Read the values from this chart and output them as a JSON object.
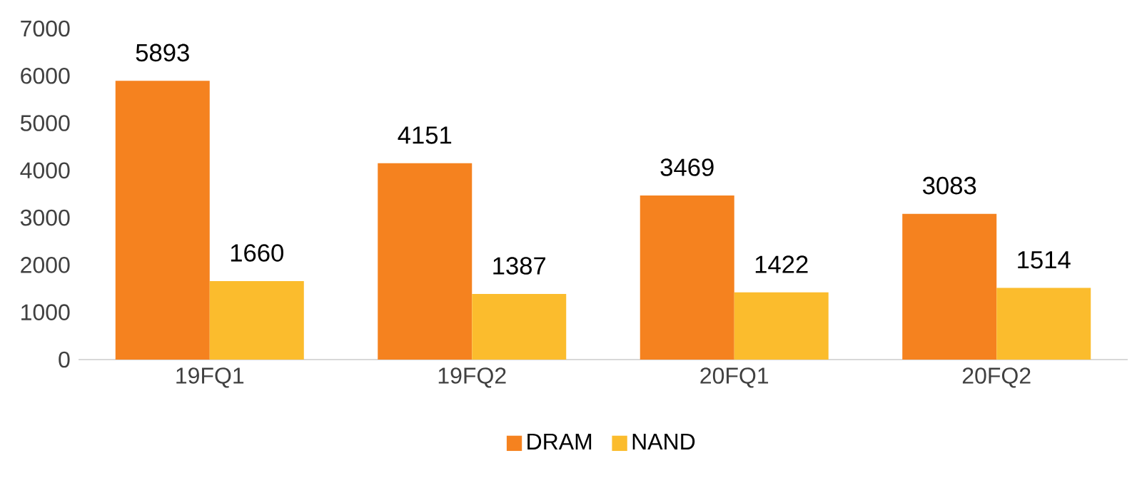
{
  "chart_data": {
    "type": "bar",
    "categories": [
      "19FQ1",
      "19FQ2",
      "20FQ1",
      "20FQ2"
    ],
    "series": [
      {
        "name": "DRAM",
        "color": "#f5821f",
        "values": [
          5893,
          4151,
          3469,
          3083
        ]
      },
      {
        "name": "NAND",
        "color": "#fbbc2d",
        "values": [
          1660,
          1387,
          1422,
          1514
        ]
      }
    ],
    "ylim": [
      0,
      7000
    ],
    "yticks": [
      0,
      1000,
      2000,
      3000,
      4000,
      5000,
      6000,
      7000
    ],
    "data_labels": true,
    "legend": "bottom",
    "grid": false
  }
}
